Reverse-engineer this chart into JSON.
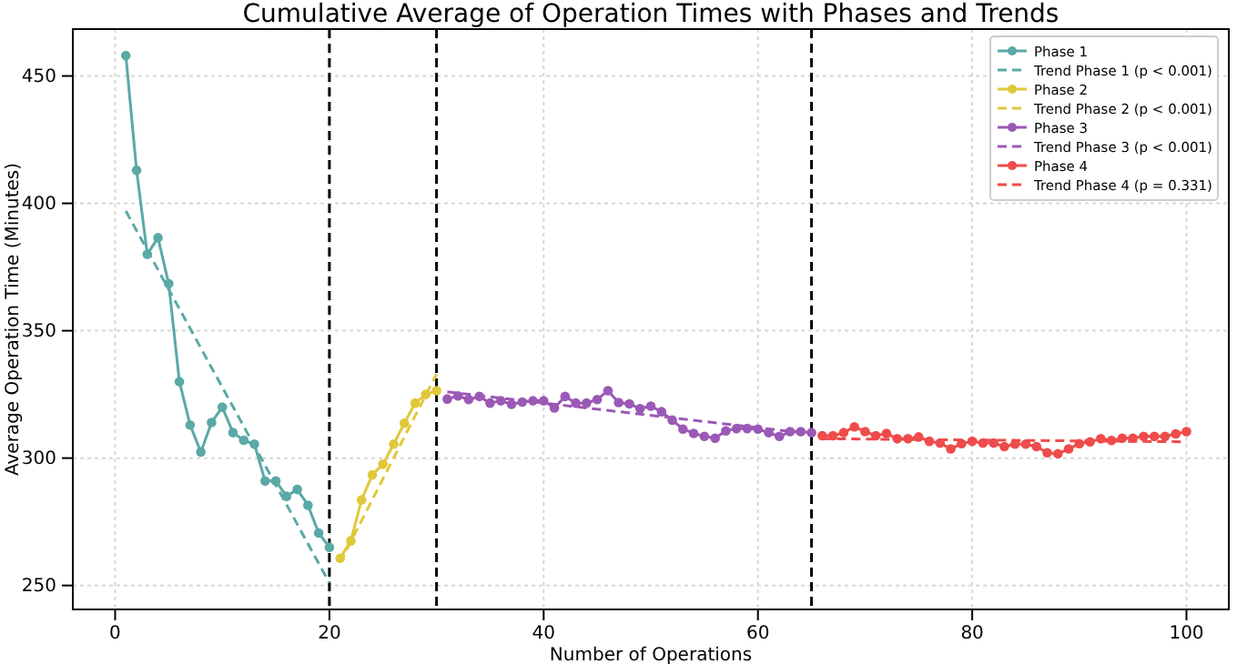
{
  "chart_data": {
    "type": "line",
    "title": "Cumulative Average of Operation Times with Phases and Trends",
    "xlabel": "Number of Operations",
    "ylabel": "Average Operation Time (Minutes)",
    "xlim": [
      -3.95,
      103.95
    ],
    "xticks": [
      0,
      20,
      40,
      60,
      80,
      100
    ],
    "ylim": [
      240.6,
      468.4
    ],
    "yticks": [
      250,
      300,
      350,
      400,
      450
    ],
    "grid": true,
    "legend": "top right",
    "series": [
      {
        "name": "Phase 1",
        "color": "#5aa9a6",
        "marker": "circle",
        "line_style": "solid",
        "x": [
          1,
          2,
          3,
          4,
          5,
          6,
          7,
          8,
          9,
          10,
          11,
          12,
          13,
          14,
          15,
          16,
          17,
          18,
          19,
          20
        ],
        "values": [
          458,
          413,
          380,
          386.5,
          368.5,
          330,
          313,
          302.4,
          314,
          320,
          310,
          307,
          305.5,
          291,
          291,
          285,
          287.7,
          281.5,
          270.6,
          265
        ]
      },
      {
        "name": "Trend Phase 1 (p < 0.001)",
        "color": "#5aa9a6",
        "marker": "none",
        "line_style": "dashed",
        "x": [
          1,
          20
        ],
        "values": [
          397,
          251
        ]
      },
      {
        "name": "Phase 2",
        "color": "#e0c83a",
        "marker": "circle",
        "line_style": "solid",
        "x": [
          21,
          22,
          23,
          24,
          25,
          26,
          27,
          28,
          29,
          30
        ],
        "values": [
          260.7,
          267.5,
          283.6,
          293.4,
          297.6,
          305.5,
          313.7,
          321.6,
          325,
          326.5
        ]
      },
      {
        "name": "Trend Phase 2 (p < 0.001)",
        "color": "#e0c83a",
        "marker": "none",
        "line_style": "dashed",
        "x": [
          21,
          30
        ],
        "values": [
          259,
          333
        ]
      },
      {
        "name": "Phase 3",
        "color": "#9b59b6",
        "marker": "circle",
        "line_style": "solid",
        "x": [
          31,
          32,
          33,
          34,
          35,
          36,
          37,
          38,
          39,
          40,
          41,
          42,
          43,
          44,
          45,
          46,
          47,
          48,
          49,
          50,
          51,
          52,
          53,
          54,
          55,
          56,
          57,
          58,
          59,
          60,
          61,
          62,
          63,
          64,
          65
        ],
        "values": [
          323.2,
          324.4,
          323,
          324.2,
          321.6,
          322.5,
          321.1,
          322,
          322.5,
          322.5,
          319.7,
          324.2,
          321.6,
          321.6,
          323,
          326.5,
          321.8,
          321.3,
          319.4,
          320.4,
          318.2,
          314.9,
          311.4,
          309.7,
          308.5,
          307.8,
          310.7,
          311.6,
          311.6,
          311.4,
          310,
          308.5,
          310.4,
          310.4,
          310
        ]
      },
      {
        "name": "Trend Phase 3 (p < 0.001)",
        "color": "#9b59b6",
        "marker": "none",
        "line_style": "dashed",
        "x": [
          31,
          65
        ],
        "values": [
          326,
          309.5
        ]
      },
      {
        "name": "Phase 4",
        "color": "#ef4b4b",
        "marker": "circle",
        "line_style": "solid",
        "x": [
          66,
          67,
          68,
          69,
          70,
          71,
          72,
          73,
          74,
          75,
          76,
          77,
          78,
          79,
          80,
          81,
          82,
          83,
          84,
          85,
          86,
          87,
          88,
          89,
          90,
          91,
          92,
          93,
          94,
          95,
          96,
          97,
          98,
          99,
          100
        ],
        "values": [
          308.8,
          308.8,
          310,
          312.3,
          310.4,
          308.8,
          309.7,
          307.6,
          307.6,
          308.3,
          306.6,
          305.9,
          303.6,
          305.7,
          306.6,
          305.9,
          305.9,
          304.5,
          305.5,
          305.5,
          304.5,
          302.1,
          301.7,
          303.6,
          305.7,
          306.4,
          307.6,
          306.9,
          307.8,
          307.8,
          308.5,
          308.5,
          308.5,
          309.5,
          310.4
        ]
      },
      {
        "name": "Trend Phase 4 (p = 0.331)",
        "color": "#ef4b4b",
        "marker": "none",
        "line_style": "dashed",
        "x": [
          66,
          100
        ],
        "values": [
          307.6,
          306.4
        ]
      }
    ],
    "ref_lines": [
      {
        "axis": "x",
        "value": 20,
        "color": "#000000",
        "line_style": "dashed"
      },
      {
        "axis": "x",
        "value": 30,
        "color": "#000000",
        "line_style": "dashed"
      },
      {
        "axis": "x",
        "value": 65,
        "color": "#000000",
        "line_style": "dashed"
      }
    ]
  }
}
